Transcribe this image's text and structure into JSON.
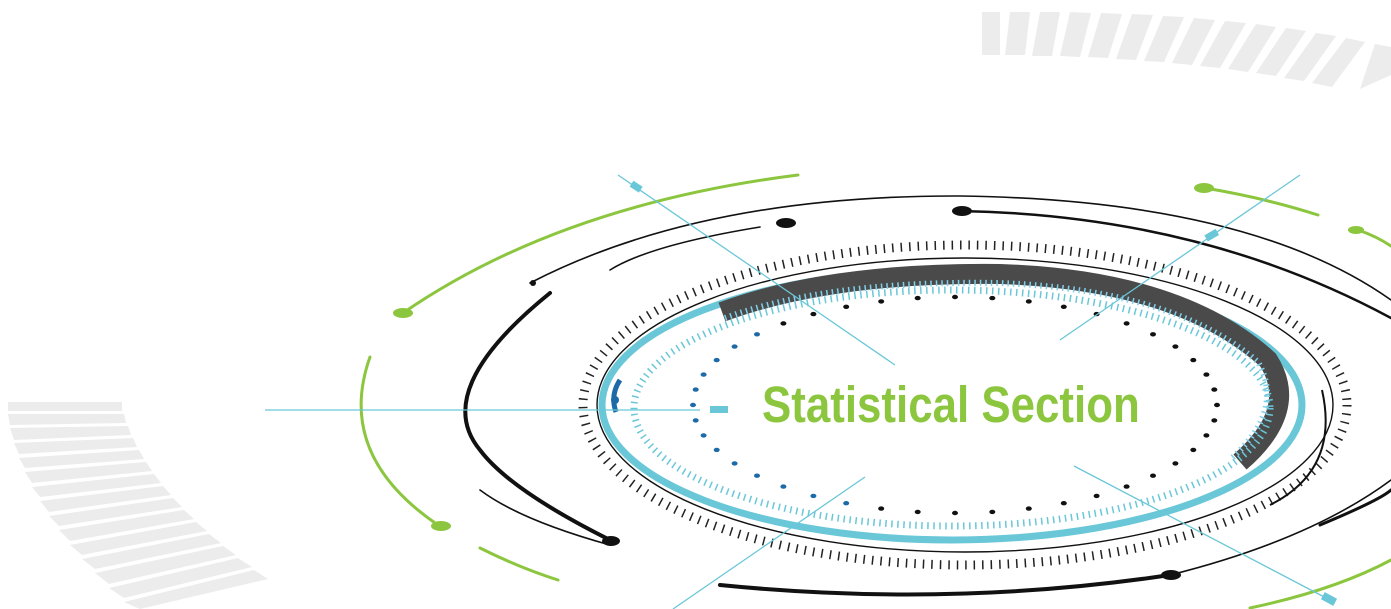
{
  "title": "Statistical Section",
  "colors": {
    "accent_green": "#8cc63f",
    "accent_cyan": "#6ac7d8",
    "accent_blue": "#1c6aa8",
    "dark_band": "#4a4a4a",
    "line_black": "#111111",
    "stripe_grey": "#ececec"
  }
}
